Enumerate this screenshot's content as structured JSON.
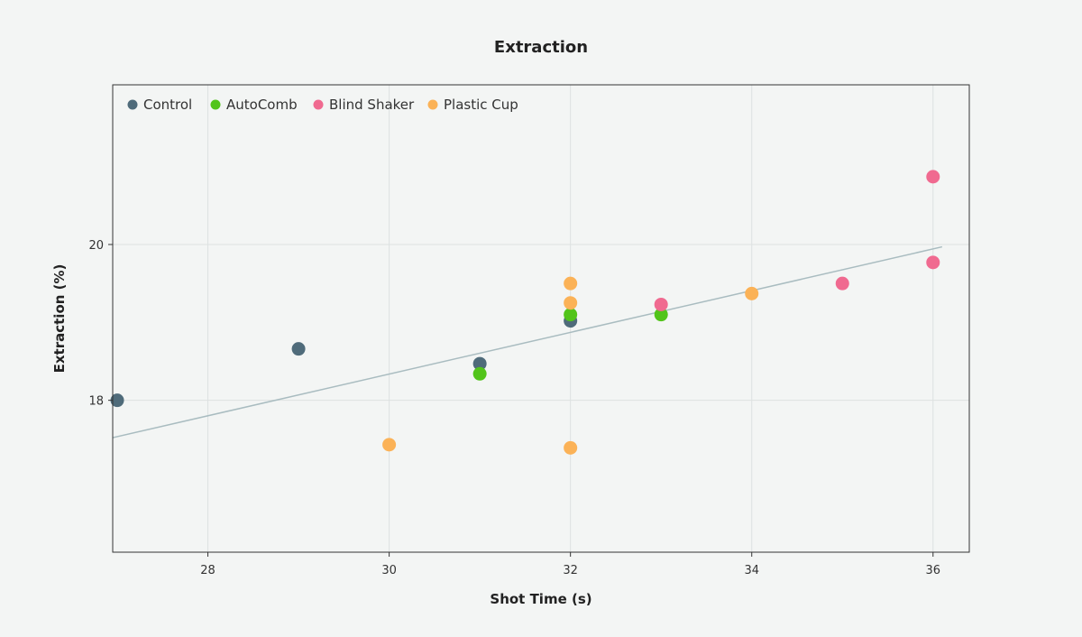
{
  "chart_data": {
    "type": "scatter",
    "title": "Extraction",
    "xlabel": "Shot Time (s)",
    "ylabel": "Extraction (%)",
    "xlim": [
      26.95,
      36.4
    ],
    "ylim": [
      16.05,
      22.05
    ],
    "x_ticks": [
      28,
      30,
      32,
      34,
      36
    ],
    "y_ticks": [
      18,
      20
    ],
    "grid": true,
    "legend_position": "top-left",
    "series": [
      {
        "name": "Control",
        "color": "#4f6b7a",
        "points": [
          [
            27,
            18.0
          ],
          [
            29,
            18.66
          ],
          [
            31,
            18.47
          ],
          [
            32,
            19.02
          ]
        ]
      },
      {
        "name": "AutoComb",
        "color": "#52c41a",
        "points": [
          [
            31,
            18.34
          ],
          [
            32,
            19.1
          ],
          [
            33,
            19.1
          ]
        ]
      },
      {
        "name": "Blind Shaker",
        "color": "#f06a90",
        "points": [
          [
            33,
            19.23
          ],
          [
            35,
            19.5
          ],
          [
            36,
            19.77
          ],
          [
            36,
            20.87
          ]
        ]
      },
      {
        "name": "Plastic Cup",
        "color": "#fbb257",
        "points": [
          [
            30,
            17.43
          ],
          [
            32,
            17.39
          ],
          [
            32,
            19.25
          ],
          [
            32,
            19.5
          ],
          [
            34,
            19.37
          ]
        ]
      }
    ],
    "trendline": {
      "color": "#a9bcc0",
      "points": [
        [
          26.95,
          17.52
        ],
        [
          36.1,
          19.97
        ]
      ]
    }
  }
}
